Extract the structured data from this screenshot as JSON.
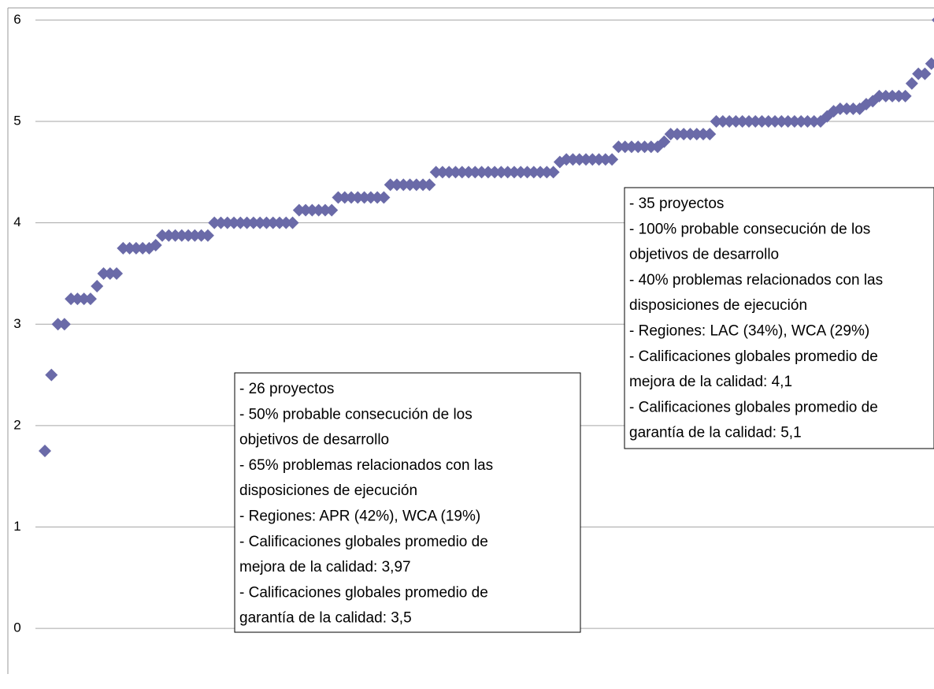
{
  "chart_data": {
    "type": "scatter",
    "values": [
      1.75,
      2.5,
      3,
      3,
      3.25,
      3.25,
      3.25,
      3.25,
      3.375,
      3.5,
      3.5,
      3.5,
      3.75,
      3.75,
      3.75,
      3.75,
      3.75,
      3.78,
      3.875,
      3.875,
      3.875,
      3.875,
      3.875,
      3.875,
      3.875,
      3.875,
      4,
      4,
      4,
      4,
      4,
      4,
      4,
      4,
      4,
      4,
      4,
      4,
      4,
      4.125,
      4.125,
      4.125,
      4.125,
      4.125,
      4.125,
      4.25,
      4.25,
      4.25,
      4.25,
      4.25,
      4.25,
      4.25,
      4.25,
      4.375,
      4.375,
      4.375,
      4.375,
      4.375,
      4.375,
      4.375,
      4.5,
      4.5,
      4.5,
      4.5,
      4.5,
      4.5,
      4.5,
      4.5,
      4.5,
      4.5,
      4.5,
      4.5,
      4.5,
      4.5,
      4.5,
      4.5,
      4.5,
      4.5,
      4.5,
      4.6,
      4.625,
      4.625,
      4.625,
      4.625,
      4.625,
      4.625,
      4.625,
      4.625,
      4.75,
      4.75,
      4.75,
      4.75,
      4.75,
      4.75,
      4.75,
      4.8,
      4.875,
      4.875,
      4.875,
      4.875,
      4.875,
      4.875,
      4.875,
      5,
      5,
      5,
      5,
      5,
      5,
      5,
      5,
      5,
      5,
      5,
      5,
      5,
      5,
      5,
      5,
      5,
      5.05,
      5.1,
      5.125,
      5.125,
      5.125,
      5.125,
      5.17,
      5.2,
      5.25,
      5.25,
      5.25,
      5.25,
      5.25,
      5.375,
      5.47,
      5.47,
      5.57,
      6
    ],
    "color": "#6a6aa8",
    "ylim": [
      -0.45,
      6.12
    ],
    "yticks": [
      0,
      1,
      2,
      3,
      4,
      5,
      6
    ],
    "grid": true,
    "annotations": [
      [
        "- 26 proyectos",
        "- 50% probable consecución de los",
        "objetivos de desarrollo",
        "- 65% problemas relacionados con las",
        "disposiciones de ejecución",
        "- Regiones:  APR (42%), WCA (19%)",
        "- Calificaciones globales promedio de",
        "mejora de la calidad: 3,97",
        "- Calificaciones globales promedio de",
        "garantía de la calidad: 3,5"
      ],
      [
        "- 35 proyectos",
        "- 100% probable consecución de los",
        "objetivos de desarrollo",
        "- 40% problemas relacionados con las",
        "disposiciones de ejecución",
        "- Regiones:  LAC (34%), WCA    (29%)",
        "- Calificaciones globales promedio de",
        "mejora de la calidad:  4,1",
        "- Calificaciones globales promedio de",
        "garantía de la calidad:  5,1"
      ]
    ]
  }
}
